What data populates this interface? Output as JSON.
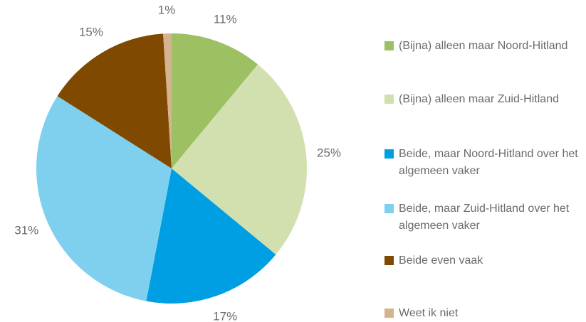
{
  "chart_data": {
    "type": "pie",
    "categories": [
      "(Bijna) alleen maar Noord-Hitland",
      "(Bijna) alleen maar Zuid-Hitland",
      "Beide, maar Noord-Hitland over het algemeen vaker",
      "Beide, maar Zuid-Hitland over het algemeen vaker",
      "Beide even vaak",
      "Weet ik niet"
    ],
    "values": [
      11,
      25,
      17,
      31,
      15,
      1
    ],
    "value_labels": [
      "11%",
      "25%",
      "17%",
      "31%",
      "15%",
      "1%"
    ],
    "colors": [
      "#9dc062",
      "#d2e0b0",
      "#009fe3",
      "#7fd0ef",
      "#7f4a00",
      "#d4b48f"
    ],
    "legend": "right"
  }
}
